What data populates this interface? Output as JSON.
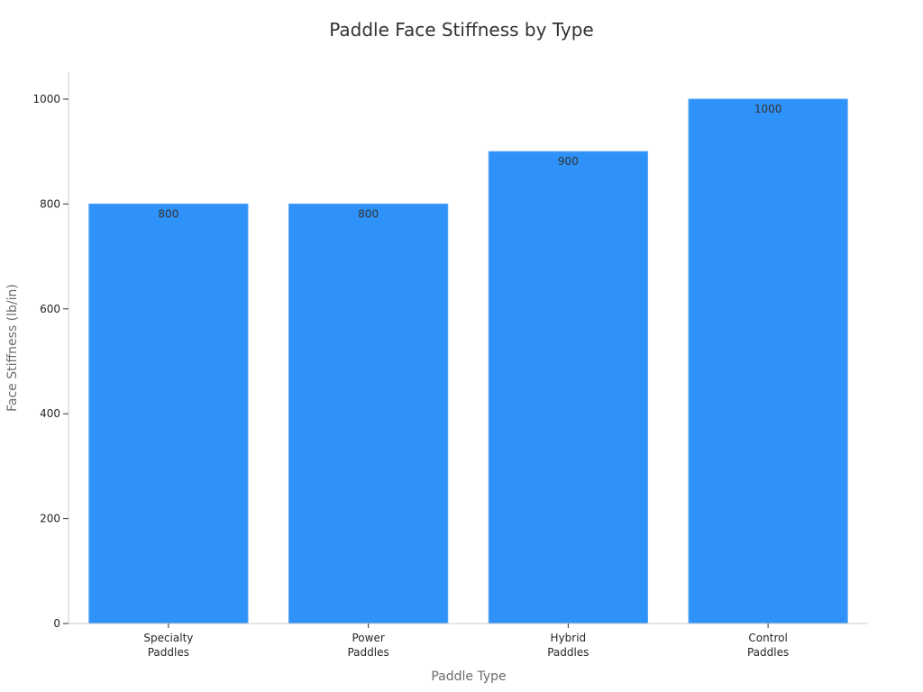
{
  "chart_data": {
    "type": "bar",
    "title": "Paddle Face Stiffness by Type",
    "xlabel": "Paddle Type",
    "ylabel": "Face Stiffness (lb/in)",
    "categories": [
      [
        "Specialty",
        "Paddles"
      ],
      [
        "Power",
        "Paddles"
      ],
      [
        "Hybrid",
        "Paddles"
      ],
      [
        "Control",
        "Paddles"
      ]
    ],
    "values": [
      800,
      800,
      900,
      1000
    ],
    "data_labels": [
      "800",
      "800",
      "900",
      "1000"
    ],
    "ylim": [
      0,
      1050
    ],
    "yticks": [
      0,
      200,
      400,
      600,
      800,
      1000
    ],
    "bar_color": "#2f92f8",
    "grid": false,
    "legend": "none"
  }
}
